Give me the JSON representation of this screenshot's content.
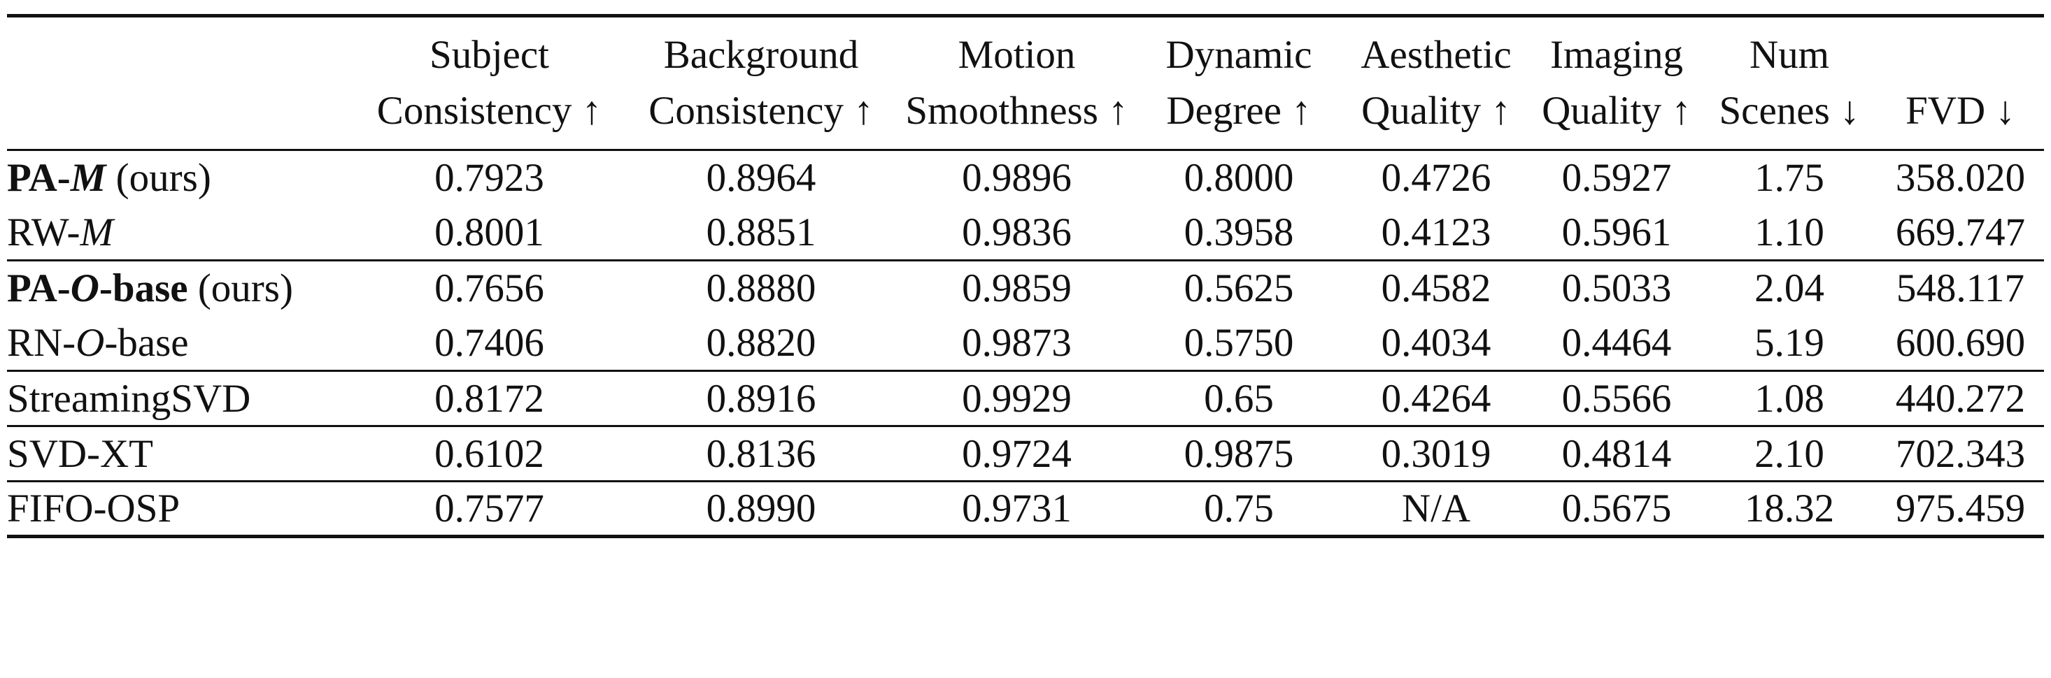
{
  "columns": [
    {
      "line1": "Subject",
      "line2": "Consistency ↑"
    },
    {
      "line1": "Background",
      "line2": "Consistency ↑"
    },
    {
      "line1": "Motion",
      "line2": "Smoothness ↑"
    },
    {
      "line1": "Dynamic",
      "line2": "Degree ↑"
    },
    {
      "line1": "Aesthetic",
      "line2": "Quality ↑"
    },
    {
      "line1": "Imaging",
      "line2": "Quality ↑"
    },
    {
      "line1": "Num",
      "line2": "Scenes ↓"
    },
    {
      "line1": "",
      "line2": "FVD ↓"
    }
  ],
  "rows": [
    {
      "name_a": "PA-",
      "name_b": "M",
      "name_c": " (ours)",
      "values": [
        "0.7923",
        "0.8964",
        "0.9896",
        "0.8000",
        "0.4726",
        "0.5927",
        "1.75",
        "358.020"
      ],
      "bold": [
        false,
        true,
        false,
        false,
        true,
        true,
        false,
        true
      ]
    },
    {
      "name_a": "RW-",
      "name_b": "M",
      "name_c": "",
      "values": [
        "0.8001",
        "0.8851",
        "0.9836",
        "0.3958",
        "0.4123",
        "0.5961",
        "1.10",
        "669.747"
      ],
      "bold": [
        false,
        false,
        false,
        false,
        false,
        true,
        false,
        false
      ]
    },
    {
      "name_a": "PA-",
      "name_b": "O",
      "name_c": "-base",
      "name_d": " (ours)",
      "values": [
        "0.7656",
        "0.8880",
        "0.9859",
        "0.5625",
        "0.4582",
        "0.5033",
        "2.04",
        "548.117"
      ],
      "bold": [
        false,
        false,
        false,
        false,
        false,
        false,
        false,
        false
      ]
    },
    {
      "name_a": "RN-",
      "name_b": "O",
      "name_c": "-base",
      "values": [
        "0.7406",
        "0.8820",
        "0.9873",
        "0.5750",
        "0.4034",
        "0.4464",
        "5.19",
        "600.690"
      ],
      "bold": [
        false,
        false,
        false,
        false,
        false,
        false,
        false,
        false
      ]
    },
    {
      "name": "StreamingSVD",
      "values": [
        "0.8172",
        "0.8916",
        "0.9929",
        "0.65",
        "0.4264",
        "0.5566",
        "1.08",
        "440.272"
      ],
      "bold": [
        true,
        false,
        true,
        false,
        false,
        false,
        true,
        false
      ]
    },
    {
      "name": "SVD-XT",
      "values": [
        "0.6102",
        "0.8136",
        "0.9724",
        "0.9875",
        "0.3019",
        "0.4814",
        "2.10",
        "702.343"
      ],
      "bold": [
        false,
        false,
        false,
        true,
        false,
        false,
        false,
        false
      ]
    },
    {
      "name": "FIFO-OSP",
      "values": [
        "0.7577",
        "0.8990",
        "0.9731",
        "0.75",
        "N/A",
        "0.5675",
        "18.32",
        "975.459"
      ],
      "bold": [
        false,
        false,
        false,
        false,
        false,
        false,
        false,
        false
      ]
    }
  ]
}
